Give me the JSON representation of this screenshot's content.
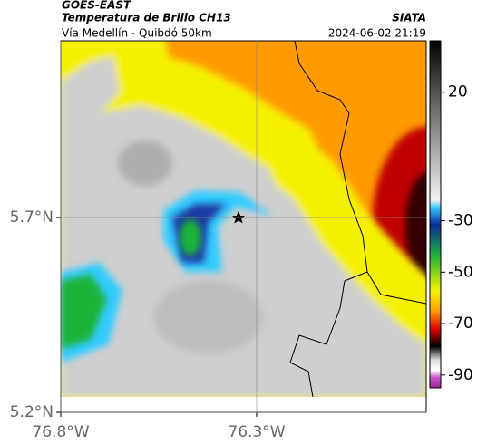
{
  "header": {
    "source": "GOES-EAST",
    "product": "Temperatura de Brillo CH13",
    "agency": "SIATA",
    "region": "Vía Medellín - Quibdó 50km",
    "timestamp": "2024-06-02 21:19"
  },
  "map": {
    "xlim": [
      -76.8,
      -75.867
    ],
    "ylim": [
      5.2,
      6.153
    ],
    "xticks": [
      {
        "value": -76.8,
        "label": "76.8°W"
      },
      {
        "value": -76.3,
        "label": "76.3°W"
      }
    ],
    "yticks": [
      {
        "value": 5.2,
        "label": "5.2°N"
      },
      {
        "value": 5.7,
        "label": "5.7°N"
      }
    ]
  },
  "colorbar": {
    "lim": [
      40,
      -95
    ],
    "ticks": [
      20,
      -30,
      -50,
      -70,
      -90
    ]
  }
}
